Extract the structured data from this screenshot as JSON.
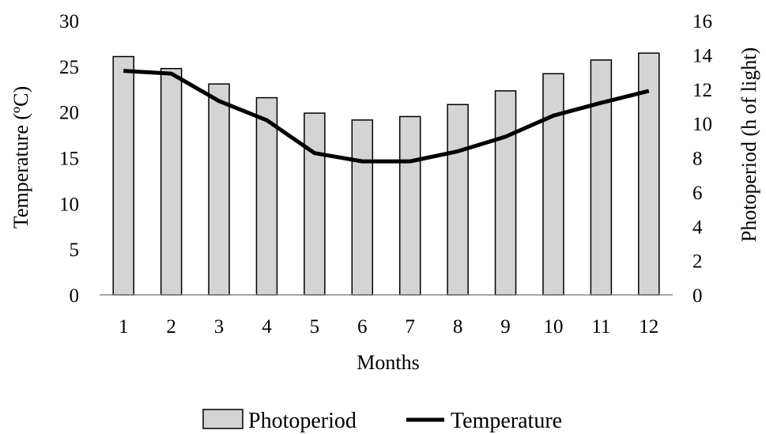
{
  "chart_data": {
    "type": "bar+line",
    "categories": [
      "1",
      "2",
      "3",
      "4",
      "5",
      "6",
      "7",
      "8",
      "9",
      "10",
      "11",
      "12"
    ],
    "series": [
      {
        "name": "Photoperiod",
        "type": "bar",
        "axis": "right",
        "color": "#d4d4d4",
        "values": [
          13.9,
          13.2,
          12.3,
          11.5,
          10.6,
          10.2,
          10.4,
          11.1,
          11.9,
          12.9,
          13.7,
          14.1
        ]
      },
      {
        "name": "Temperature",
        "type": "line",
        "axis": "left",
        "color": "#000000",
        "values": [
          24.5,
          24.2,
          21.2,
          19.1,
          15.5,
          14.6,
          14.6,
          15.7,
          17.3,
          19.6,
          21.0,
          22.3
        ]
      }
    ],
    "xlabel": "Months",
    "ylabel_left": "Temperature (ºC)",
    "ylabel_right": "Photoperiod (h of light)",
    "ylim_left": [
      0,
      30
    ],
    "yticks_left": [
      "0",
      "5",
      "10",
      "15",
      "20",
      "25",
      "30"
    ],
    "ylim_right": [
      0,
      16
    ],
    "yticks_right": [
      "0",
      "2",
      "4",
      "6",
      "8",
      "10",
      "12",
      "14",
      "16"
    ],
    "grid": false,
    "legend_position": "bottom"
  }
}
